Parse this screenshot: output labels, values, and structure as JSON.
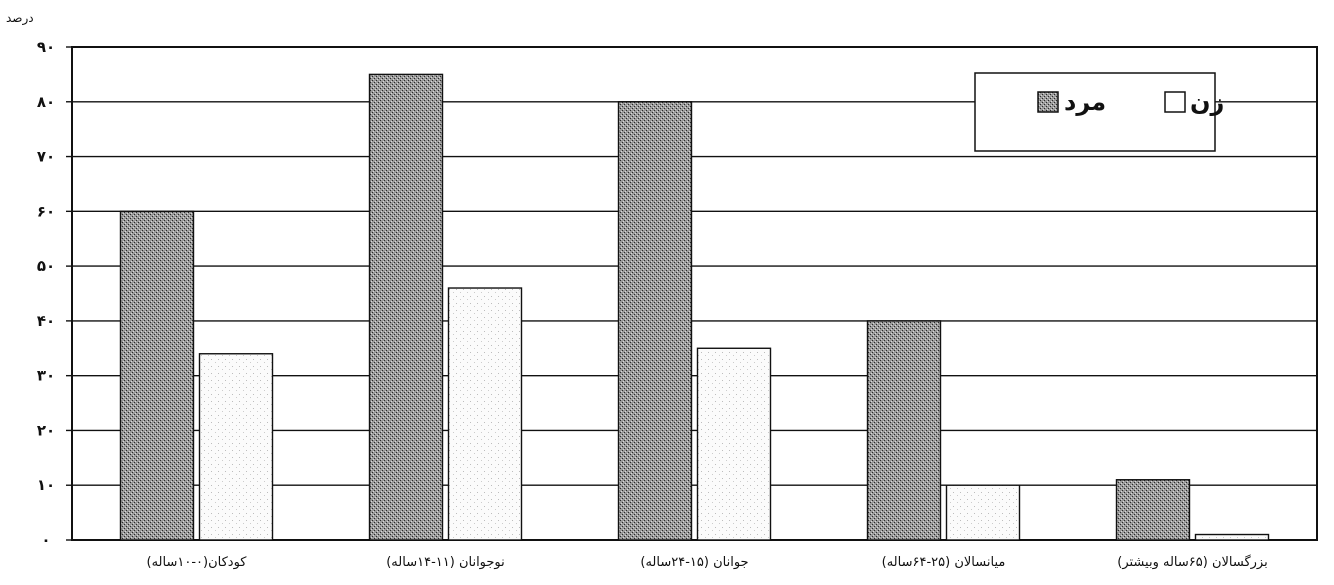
{
  "chart_data": {
    "type": "bar",
    "title": "",
    "unit_label": "درصد",
    "categories": [
      "کودکان(۰-۱۰ساله)",
      "نوجوانان (۱۱-۱۴ساله)",
      "جوانان (۱۵-۲۴ساله)",
      "میانسالان (۲۵-۶۴ساله)",
      "بزرگسالان (۶۵ساله وبیشتر)"
    ],
    "series": [
      {
        "name": "مرد",
        "values": [
          60,
          85,
          80,
          40,
          11
        ]
      },
      {
        "name": "زن",
        "values": [
          34,
          46,
          35,
          10,
          1
        ]
      }
    ],
    "ylim": [
      0,
      90
    ],
    "yticks": [
      0,
      10,
      20,
      30,
      40,
      50,
      60,
      70,
      80,
      90
    ],
    "ytick_labels": [
      "۰",
      "۱۰",
      "۲۰",
      "۳۰",
      "۴۰",
      "۵۰",
      "۶۰",
      "۷۰",
      "۸۰",
      "۹۰"
    ],
    "grid": true,
    "legend": "top-right",
    "colors": {
      "male": "#8a8a8a",
      "female": "#ffffff"
    }
  }
}
